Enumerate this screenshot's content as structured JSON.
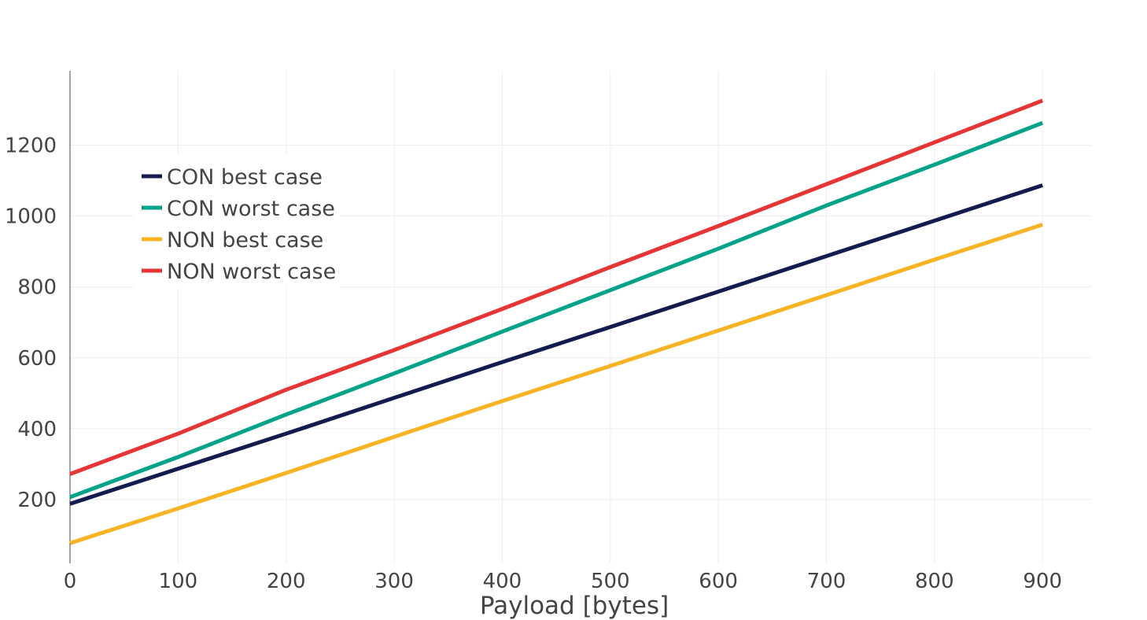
{
  "chart_data": {
    "type": "line",
    "title": "",
    "xlabel": "Payload [bytes]",
    "ylabel": "",
    "xlim": [
      0,
      945
    ],
    "ylim": [
      20,
      1410
    ],
    "x_ticks": [
      0,
      100,
      200,
      300,
      400,
      500,
      600,
      700,
      800,
      900
    ],
    "y_ticks": [
      200,
      400,
      600,
      800,
      1000,
      1200
    ],
    "grid": true,
    "legend_position": "upper-left",
    "x": [
      0,
      100,
      200,
      300,
      400,
      500,
      600,
      700,
      800,
      900
    ],
    "series": [
      {
        "name": "CON best case",
        "color": "#141c4f",
        "values": [
          188,
          287,
          386,
          487,
          588,
          687,
          787,
          887,
          987,
          1087
        ]
      },
      {
        "name": "CON worst case",
        "color": "#00a388",
        "values": [
          207,
          320,
          440,
          556,
          674,
          791,
          908,
          1030,
          1145,
          1263
        ]
      },
      {
        "name": "NON best case",
        "color": "#f9b425",
        "values": [
          77,
          175,
          275,
          377,
          478,
          577,
          677,
          777,
          877,
          976
        ]
      },
      {
        "name": "NON worst case",
        "color": "#e53535",
        "values": [
          272,
          386,
          510,
          622,
          738,
          856,
          972,
          1090,
          1208,
          1326
        ]
      }
    ]
  }
}
